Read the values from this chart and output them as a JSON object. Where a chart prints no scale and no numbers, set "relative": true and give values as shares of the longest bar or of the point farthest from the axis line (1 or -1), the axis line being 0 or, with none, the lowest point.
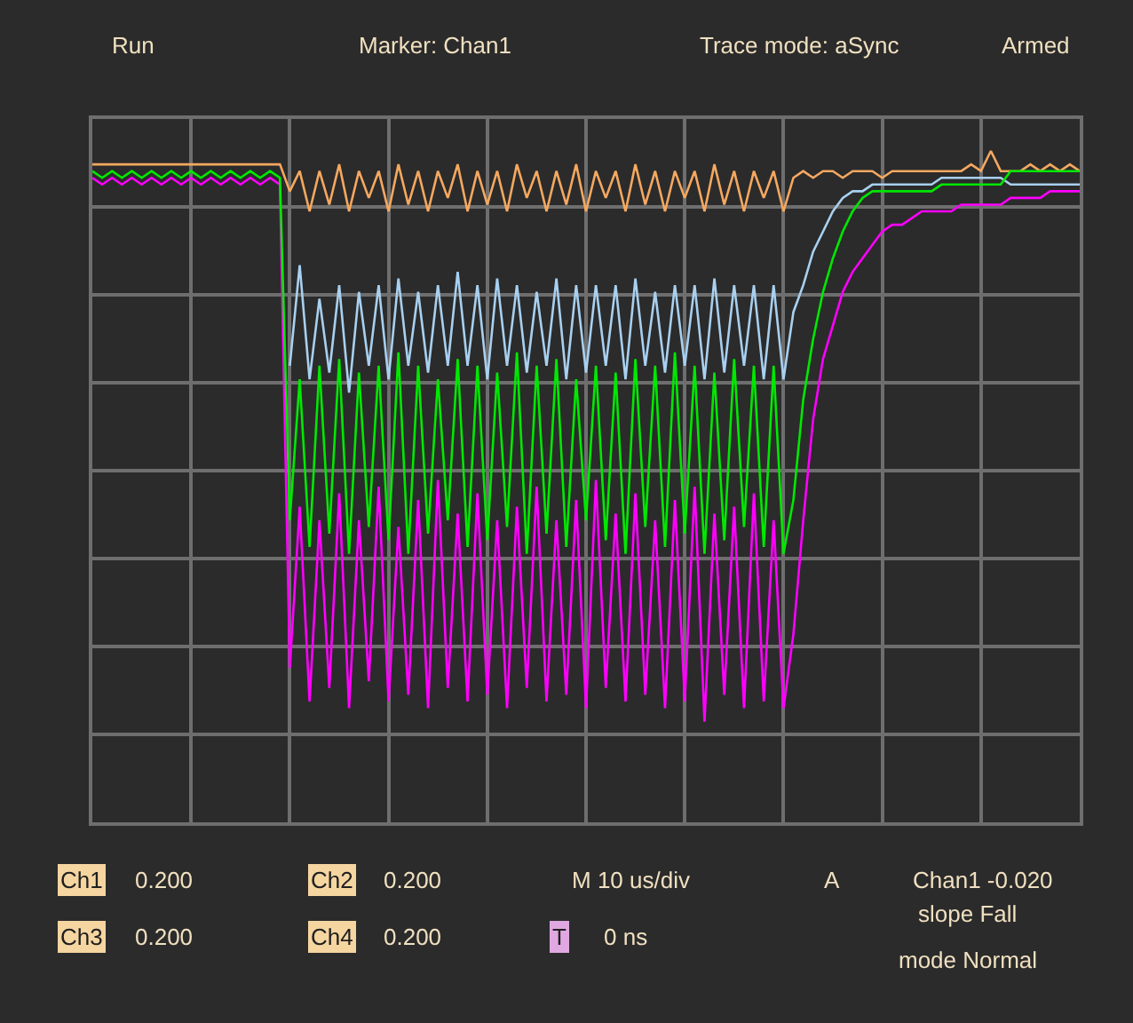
{
  "chart_data": {
    "type": "line",
    "relative": true,
    "grid": true,
    "tick_labels": false,
    "legend": false,
    "marker": "none",
    "line_style": "solid",
    "categories": [
      null,
      null,
      null,
      null,
      null,
      null,
      null,
      null,
      null,
      null,
      null,
      null,
      null,
      null,
      null,
      null,
      null,
      null,
      null,
      null,
      null,
      null,
      null,
      null,
      null,
      null,
      null,
      null,
      null,
      null,
      null,
      null,
      null,
      null,
      null,
      null,
      null,
      null,
      null,
      null,
      null,
      null,
      null,
      null,
      null,
      null,
      null,
      null,
      null,
      null,
      null,
      null,
      null,
      null,
      null,
      null,
      null,
      null,
      null,
      null,
      null,
      null,
      null,
      null,
      null,
      null,
      null,
      null,
      null,
      null,
      null,
      null,
      null,
      null,
      null,
      null,
      null,
      null,
      null,
      null,
      null,
      null,
      null,
      null,
      null,
      null,
      null,
      null,
      null,
      null,
      null,
      null,
      null,
      null,
      null,
      null,
      null,
      null,
      null,
      null,
      null
    ],
    "annotations": [
      "Run",
      "Marker: Chan1",
      "Trace mode: aSync",
      "Armed",
      "Ch1",
      "0.200",
      "Ch2",
      "0.200",
      "M 10 us/div",
      "A",
      "Chan1 -0.020",
      "slope Fall",
      "Ch3",
      "0.200",
      "Ch4",
      "0.200",
      "T",
      "0 ns",
      "mode Normal"
    ],
    "series": [
      {
        "color": "#f5a860",
        "values": [
          0.98,
          0.98,
          0.98,
          0.98,
          0.98,
          0.98,
          0.98,
          0.98,
          0.98,
          0.98,
          0.98,
          0.98,
          0.98,
          0.98,
          0.98,
          0.98,
          0.98,
          0.98,
          0.98,
          0.98,
          0.94,
          0.97,
          0.91,
          0.97,
          0.92,
          0.98,
          0.91,
          0.97,
          0.93,
          0.97,
          0.91,
          0.98,
          0.92,
          0.97,
          0.91,
          0.97,
          0.93,
          0.98,
          0.91,
          0.97,
          0.92,
          0.97,
          0.91,
          0.98,
          0.93,
          0.97,
          0.91,
          0.97,
          0.92,
          0.98,
          0.91,
          0.97,
          0.93,
          0.97,
          0.91,
          0.98,
          0.92,
          0.97,
          0.91,
          0.97,
          0.93,
          0.97,
          0.91,
          0.98,
          0.92,
          0.97,
          0.91,
          0.97,
          0.93,
          0.97,
          0.91,
          0.96,
          0.97,
          0.96,
          0.97,
          0.97,
          0.96,
          0.97,
          0.97,
          0.97,
          0.96,
          0.97,
          0.97,
          0.97,
          0.97,
          0.97,
          0.97,
          0.97,
          0.97,
          0.98,
          0.97,
          1.0,
          0.97,
          0.97,
          0.97,
          0.98,
          0.97,
          0.98,
          0.97,
          0.98,
          0.97
        ]
      },
      {
        "color": "#a8d0f0",
        "values": [
          null,
          null,
          null,
          null,
          null,
          null,
          null,
          null,
          null,
          null,
          null,
          null,
          null,
          null,
          null,
          null,
          null,
          null,
          null,
          null,
          0.68,
          0.83,
          0.66,
          0.78,
          0.67,
          0.8,
          0.64,
          0.79,
          0.68,
          0.8,
          0.66,
          0.81,
          0.68,
          0.79,
          0.67,
          0.8,
          0.68,
          0.82,
          0.68,
          0.8,
          0.66,
          0.81,
          0.68,
          0.8,
          0.67,
          0.79,
          0.68,
          0.81,
          0.66,
          0.8,
          0.67,
          0.8,
          0.68,
          0.8,
          0.66,
          0.81,
          0.68,
          0.79,
          0.67,
          0.8,
          0.68,
          0.8,
          0.66,
          0.81,
          0.67,
          0.8,
          0.68,
          0.8,
          0.66,
          0.8,
          0.66,
          0.76,
          0.8,
          0.85,
          0.88,
          0.91,
          0.93,
          0.94,
          0.94,
          0.95,
          0.95,
          0.95,
          0.95,
          0.95,
          0.95,
          0.95,
          0.96,
          0.96,
          0.96,
          0.96,
          0.96,
          0.96,
          0.96,
          0.95,
          0.95,
          0.95,
          0.95,
          0.95,
          0.95,
          0.95,
          0.95
        ]
      },
      {
        "color": "#ff00ff",
        "values": [
          0.96,
          0.95,
          0.96,
          0.95,
          0.96,
          0.95,
          0.96,
          0.95,
          0.96,
          0.95,
          0.96,
          0.95,
          0.96,
          0.95,
          0.96,
          0.95,
          0.96,
          0.95,
          0.96,
          0.95,
          0.23,
          0.47,
          0.18,
          0.45,
          0.2,
          0.49,
          0.17,
          0.45,
          0.21,
          0.5,
          0.18,
          0.44,
          0.19,
          0.48,
          0.17,
          0.51,
          0.2,
          0.46,
          0.18,
          0.49,
          0.19,
          0.45,
          0.17,
          0.47,
          0.2,
          0.5,
          0.18,
          0.45,
          0.19,
          0.48,
          0.17,
          0.51,
          0.2,
          0.46,
          0.18,
          0.49,
          0.19,
          0.45,
          0.17,
          0.48,
          0.18,
          0.5,
          0.15,
          0.46,
          0.19,
          0.47,
          0.17,
          0.49,
          0.18,
          0.45,
          0.17,
          0.28,
          0.45,
          0.6,
          0.69,
          0.74,
          0.79,
          0.82,
          0.84,
          0.86,
          0.88,
          0.89,
          0.89,
          0.9,
          0.91,
          0.91,
          0.91,
          0.91,
          0.92,
          0.92,
          0.92,
          0.92,
          0.92,
          0.93,
          0.93,
          0.93,
          0.93,
          0.94,
          0.94,
          0.94,
          0.94
        ]
      },
      {
        "color": "#00e800",
        "values": [
          0.97,
          0.96,
          0.97,
          0.96,
          0.97,
          0.96,
          0.97,
          0.96,
          0.97,
          0.96,
          0.97,
          0.96,
          0.97,
          0.96,
          0.97,
          0.96,
          0.97,
          0.96,
          0.97,
          0.96,
          0.45,
          0.66,
          0.41,
          0.68,
          0.43,
          0.69,
          0.4,
          0.67,
          0.44,
          0.68,
          0.42,
          0.7,
          0.4,
          0.68,
          0.43,
          0.66,
          0.45,
          0.69,
          0.41,
          0.68,
          0.42,
          0.67,
          0.44,
          0.7,
          0.4,
          0.68,
          0.43,
          0.69,
          0.41,
          0.66,
          0.45,
          0.68,
          0.42,
          0.67,
          0.4,
          0.69,
          0.44,
          0.68,
          0.41,
          0.7,
          0.43,
          0.68,
          0.4,
          0.67,
          0.42,
          0.69,
          0.44,
          0.68,
          0.41,
          0.68,
          0.4,
          0.48,
          0.63,
          0.72,
          0.79,
          0.84,
          0.88,
          0.91,
          0.93,
          0.94,
          0.94,
          0.94,
          0.94,
          0.94,
          0.94,
          0.94,
          0.95,
          0.95,
          0.95,
          0.95,
          0.95,
          0.95,
          0.95,
          0.97,
          0.97,
          0.97,
          0.97,
          0.97,
          0.97,
          0.97,
          0.97
        ]
      }
    ]
  }
}
